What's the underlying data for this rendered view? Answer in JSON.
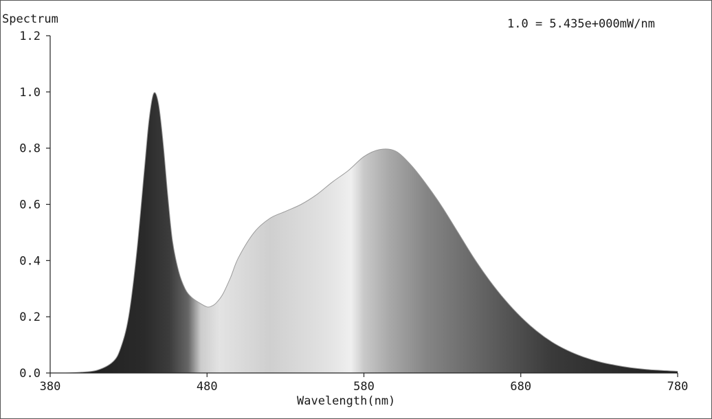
{
  "chart_data": {
    "type": "area",
    "ylabel": "Spectrum",
    "xlabel": "Wavelength(nm)",
    "scale_note": "1.0 = 5.435e+000mW/nm",
    "xlim": [
      380,
      780
    ],
    "ylim": [
      0,
      1.2
    ],
    "xticks": [
      "380",
      "480",
      "580",
      "680",
      "780"
    ],
    "yticks": [
      "0.0",
      "0.2",
      "0.4",
      "0.6",
      "0.8",
      "1.0",
      "1.2"
    ],
    "grid": false,
    "series": [
      {
        "x": [
          380,
          390,
          400,
          410,
          420,
          425,
          430,
          435,
          440,
          443,
          446,
          449,
          452,
          455,
          458,
          462,
          466,
          470,
          475,
          480,
          483,
          486,
          490,
          495,
          500,
          510,
          520,
          530,
          540,
          550,
          560,
          570,
          580,
          590,
          600,
          610,
          620,
          630,
          640,
          650,
          660,
          670,
          680,
          690,
          700,
          710,
          720,
          730,
          740,
          750,
          760,
          770,
          780
        ],
        "values": [
          0.0,
          0.0,
          0.003,
          0.01,
          0.04,
          0.09,
          0.2,
          0.42,
          0.72,
          0.9,
          0.995,
          0.96,
          0.82,
          0.63,
          0.47,
          0.36,
          0.3,
          0.27,
          0.25,
          0.235,
          0.238,
          0.25,
          0.28,
          0.34,
          0.41,
          0.5,
          0.55,
          0.575,
          0.6,
          0.635,
          0.68,
          0.72,
          0.77,
          0.795,
          0.79,
          0.74,
          0.67,
          0.59,
          0.5,
          0.41,
          0.33,
          0.26,
          0.2,
          0.15,
          0.11,
          0.08,
          0.057,
          0.04,
          0.028,
          0.019,
          0.013,
          0.009,
          0.006
        ]
      }
    ]
  }
}
